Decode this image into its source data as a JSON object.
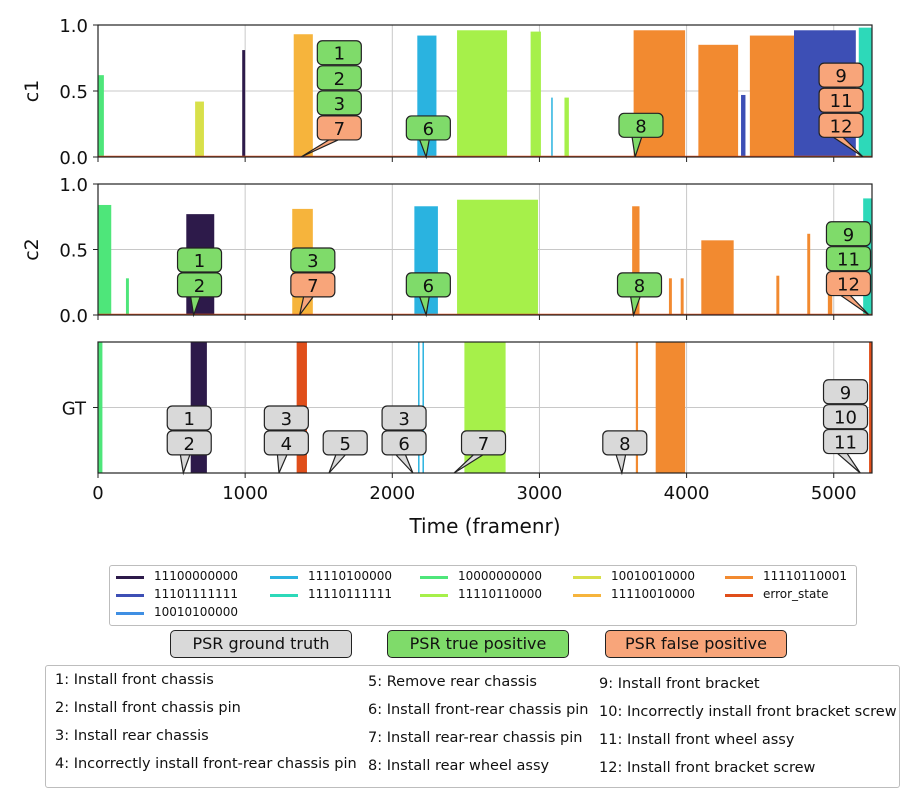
{
  "chart_data": {
    "type": "bar",
    "xlabel": "Time (framenr)",
    "xlim": [
      0,
      5260
    ],
    "x_ticks": [
      "0",
      "1000",
      "2000",
      "3000",
      "4000",
      "5000"
    ],
    "x_tick_values": [
      0,
      1000,
      2000,
      3000,
      4000,
      5000
    ],
    "grid": true,
    "panels": [
      {
        "ylabel": "c1",
        "ylim": [
          0,
          1.0
        ],
        "y_ticks": [
          "0.0",
          "0.5",
          "1.0"
        ],
        "bars": [
          {
            "series": "10000000000",
            "x0": 0,
            "x1": 40,
            "h": 0.62
          },
          {
            "series": "10010010000",
            "x0": 660,
            "x1": 720,
            "h": 0.42
          },
          {
            "series": "11100000000",
            "x0": 980,
            "x1": 1000,
            "h": 0.81
          },
          {
            "series": "11110010000",
            "x0": 1330,
            "x1": 1460,
            "h": 0.93
          },
          {
            "series": "11110100000",
            "x0": 2170,
            "x1": 2300,
            "h": 0.92
          },
          {
            "series": "11110110000",
            "x0": 2440,
            "x1": 2780,
            "h": 0.96
          },
          {
            "series": "11110110000",
            "x0": 2940,
            "x1": 3010,
            "h": 0.95
          },
          {
            "series": "11110110000",
            "x0": 3170,
            "x1": 3200,
            "h": 0.45
          },
          {
            "series": "11110100000",
            "x0": 3080,
            "x1": 3090,
            "h": 0.45
          },
          {
            "series": "11110110001",
            "x0": 3640,
            "x1": 3990,
            "h": 0.96
          },
          {
            "series": "11110110001",
            "x0": 4080,
            "x1": 4350,
            "h": 0.85
          },
          {
            "series": "11110110001",
            "x0": 4430,
            "x1": 4880,
            "h": 0.92
          },
          {
            "series": "11101111111",
            "x0": 4370,
            "x1": 4400,
            "h": 0.47
          },
          {
            "series": "11101111111",
            "x0": 4730,
            "x1": 5150,
            "h": 0.96
          },
          {
            "series": "11110111111",
            "x0": 5170,
            "x1": 5260,
            "h": 0.98
          }
        ],
        "psr_labels": [
          {
            "text": "1",
            "kind": "tp",
            "x": 1640,
            "y": 0.79
          },
          {
            "text": "2",
            "kind": "tp",
            "x": 1640,
            "y": 0.6
          },
          {
            "text": "3",
            "kind": "tp",
            "x": 1640,
            "y": 0.41
          },
          {
            "text": "7",
            "kind": "fp",
            "x": 1640,
            "y": 0.22,
            "tx": 1380
          },
          {
            "text": "6",
            "kind": "tp",
            "x": 2245,
            "y": 0.22,
            "tx": 2230
          },
          {
            "text": "8",
            "kind": "tp",
            "x": 3690,
            "y": 0.24,
            "tx": 3650
          },
          {
            "text": "9",
            "kind": "fp",
            "x": 5050,
            "y": 0.62
          },
          {
            "text": "11",
            "kind": "fp",
            "x": 5050,
            "y": 0.43
          },
          {
            "text": "12",
            "kind": "fp",
            "x": 5050,
            "y": 0.24,
            "tx": 5200
          }
        ]
      },
      {
        "ylabel": "c2",
        "ylim": [
          0,
          1.0
        ],
        "y_ticks": [
          "0.0",
          "0.5",
          "1.0"
        ],
        "bars": [
          {
            "series": "10000000000",
            "x0": 0,
            "x1": 90,
            "h": 0.84
          },
          {
            "series": "10000000000",
            "x0": 190,
            "x1": 210,
            "h": 0.28
          },
          {
            "series": "11100000000",
            "x0": 600,
            "x1": 790,
            "h": 0.77
          },
          {
            "series": "11110010000",
            "x0": 1320,
            "x1": 1460,
            "h": 0.81
          },
          {
            "series": "11110100000",
            "x0": 2150,
            "x1": 2310,
            "h": 0.83
          },
          {
            "series": "11110110000",
            "x0": 2440,
            "x1": 2990,
            "h": 0.88
          },
          {
            "series": "11110110001",
            "x0": 3630,
            "x1": 3680,
            "h": 0.83
          },
          {
            "series": "11110110001",
            "x0": 3880,
            "x1": 3900,
            "h": 0.28
          },
          {
            "series": "11110110001",
            "x0": 3960,
            "x1": 3980,
            "h": 0.28
          },
          {
            "series": "11110110001",
            "x0": 4100,
            "x1": 4320,
            "h": 0.57
          },
          {
            "series": "11110110001",
            "x0": 4610,
            "x1": 4630,
            "h": 0.3
          },
          {
            "series": "11110110001",
            "x0": 4820,
            "x1": 4840,
            "h": 0.62
          },
          {
            "series": "11110110001",
            "x0": 4960,
            "x1": 4990,
            "h": 0.3
          },
          {
            "series": "11110111111",
            "x0": 5200,
            "x1": 5260,
            "h": 0.89
          }
        ],
        "psr_labels": [
          {
            "text": "1",
            "kind": "tp",
            "x": 690,
            "y": 0.42
          },
          {
            "text": "2",
            "kind": "tp",
            "x": 690,
            "y": 0.23,
            "tx": 650
          },
          {
            "text": "3",
            "kind": "tp",
            "x": 1460,
            "y": 0.42
          },
          {
            "text": "7",
            "kind": "fp",
            "x": 1460,
            "y": 0.23,
            "tx": 1370
          },
          {
            "text": "6",
            "kind": "tp",
            "x": 2245,
            "y": 0.23,
            "tx": 2230
          },
          {
            "text": "8",
            "kind": "tp",
            "x": 3680,
            "y": 0.23,
            "tx": 3640
          },
          {
            "text": "9",
            "kind": "tp",
            "x": 5100,
            "y": 0.62
          },
          {
            "text": "11",
            "kind": "tp",
            "x": 5100,
            "y": 0.43
          },
          {
            "text": "12",
            "kind": "fp",
            "x": 5100,
            "y": 0.24,
            "tx": 5240
          }
        ]
      },
      {
        "ylabel": "GT",
        "ylim": [
          0,
          1.0
        ],
        "y_ticks": [
          "GT"
        ],
        "bars": [
          {
            "series": "10000000000",
            "x0": 0,
            "x1": 30,
            "h": 1.0
          },
          {
            "series": "11100000000",
            "x0": 630,
            "x1": 740,
            "h": 1.0
          },
          {
            "series": "error_state",
            "x0": 1350,
            "x1": 1420,
            "h": 1.0
          },
          {
            "series": "11110100000",
            "x0": 2175,
            "x1": 2185,
            "h": 1.0
          },
          {
            "series": "11110100000",
            "x0": 2205,
            "x1": 2215,
            "h": 1.0
          },
          {
            "series": "11110110000",
            "x0": 2490,
            "x1": 2770,
            "h": 1.0
          },
          {
            "series": "11110110001",
            "x0": 3655,
            "x1": 3670,
            "h": 1.0
          },
          {
            "series": "11110110001",
            "x0": 3790,
            "x1": 3990,
            "h": 1.0
          },
          {
            "series": "error_state",
            "x0": 5240,
            "x1": 5260,
            "h": 1.0
          }
        ],
        "psr_labels": [
          {
            "text": "1",
            "kind": "gt",
            "x": 620,
            "y": 0.42
          },
          {
            "text": "2",
            "kind": "gt",
            "x": 620,
            "y": 0.23,
            "tx": 580
          },
          {
            "text": "3",
            "kind": "gt",
            "x": 1280,
            "y": 0.42
          },
          {
            "text": "4",
            "kind": "gt",
            "x": 1280,
            "y": 0.23,
            "tx": 1230
          },
          {
            "text": "5",
            "kind": "gt",
            "x": 1680,
            "y": 0.23,
            "tx": 1570
          },
          {
            "text": "3",
            "kind": "gt",
            "x": 2080,
            "y": 0.42
          },
          {
            "text": "6",
            "kind": "gt",
            "x": 2080,
            "y": 0.23,
            "tx": 2140
          },
          {
            "text": "7",
            "kind": "gt",
            "x": 2620,
            "y": 0.23,
            "tx": 2420
          },
          {
            "text": "8",
            "kind": "gt",
            "x": 3580,
            "y": 0.23,
            "tx": 3560
          },
          {
            "text": "9",
            "kind": "gt",
            "x": 5080,
            "y": 0.62
          },
          {
            "text": "10",
            "kind": "gt",
            "x": 5080,
            "y": 0.43
          },
          {
            "text": "11",
            "kind": "gt",
            "x": 5080,
            "y": 0.24,
            "tx": 5180
          }
        ]
      }
    ],
    "series": [
      {
        "name": "11100000000",
        "color": "#2d1a4a"
      },
      {
        "name": "11110100000",
        "color": "#2ab3e0"
      },
      {
        "name": "10000000000",
        "color": "#4ee67a"
      },
      {
        "name": "10010010000",
        "color": "#d8e04a"
      },
      {
        "name": "11110110001",
        "color": "#f28a30"
      },
      {
        "name": "11101111111",
        "color": "#3d4fb5"
      },
      {
        "name": "11110111111",
        "color": "#2dd9b9"
      },
      {
        "name": "11110110000",
        "color": "#a6f04a"
      },
      {
        "name": "11110010000",
        "color": "#f6b43c"
      },
      {
        "name": "error_state",
        "color": "#e04e1a"
      },
      {
        "name": "10010100000",
        "color": "#3f8fe3"
      }
    ]
  },
  "legend_badges": {
    "ground_truth": "PSR ground truth",
    "true_positive": "PSR true positive",
    "false_positive": "PSR false positive"
  },
  "badge_colors": {
    "gt": "#d9d9d9",
    "tp": "#7fdb6a",
    "fp": "#f8a57a"
  },
  "steps": [
    "1: Install front chassis",
    "2: Install front chassis pin",
    "3: Install rear chassis",
    "4: Incorrectly install front-rear chassis pin",
    "5: Remove rear chassis",
    "6: Install front-rear chassis pin",
    "7: Install rear-rear chassis pin",
    "8: Install rear wheel assy",
    "9: Install front bracket",
    "10: Incorrectly install front bracket screw",
    "11: Install front wheel assy",
    "12: Install front bracket screw"
  ]
}
